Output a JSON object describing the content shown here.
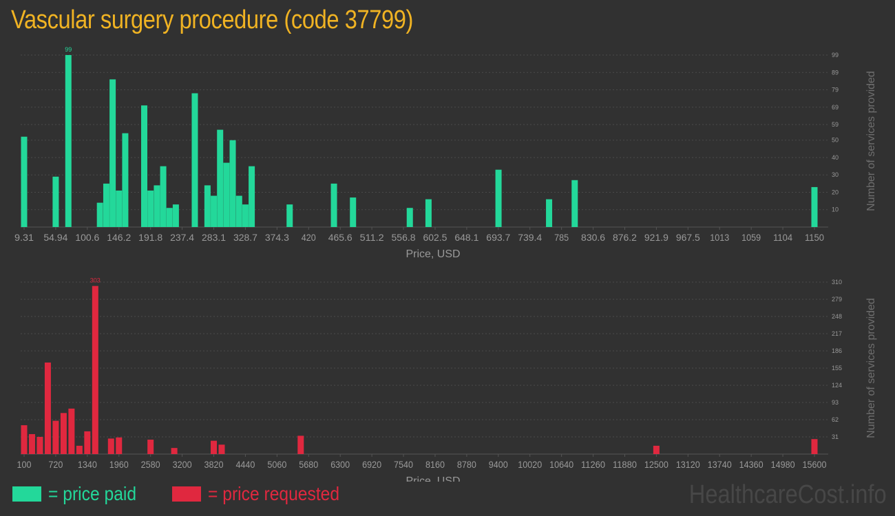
{
  "title": "Vascular surgery procedure (code 37799)",
  "legend": {
    "paid_label": "= price paid",
    "requested_label": "= price requested"
  },
  "watermark": "HealthcareCost.info",
  "colors": {
    "background": "#313131",
    "paid": "#23d89a",
    "requested": "#e0283f",
    "title": "#f0b323",
    "axis_text": "#999999",
    "grid": "#4a4a4a"
  },
  "chart_data": [
    {
      "type": "bar",
      "name": "price paid",
      "xlabel": "Price, USD",
      "ylabel": "Number of services provided",
      "x_ticks": [
        "9.31",
        "54.94",
        "100.6",
        "146.2",
        "191.8",
        "237.4",
        "283.1",
        "328.7",
        "374.3",
        "420",
        "465.6",
        "511.2",
        "556.8",
        "602.5",
        "648.1",
        "693.7",
        "739.4",
        "785",
        "830.6",
        "876.2",
        "921.9",
        "967.5",
        "1013",
        "1059",
        "1104",
        "1150"
      ],
      "y_ticks": [
        10,
        20,
        30,
        40,
        50,
        59,
        69,
        79,
        89,
        99
      ],
      "xlim": [
        9.31,
        1150
      ],
      "ylim": [
        0,
        99
      ],
      "grid": true,
      "max_label": "99",
      "bars": [
        {
          "x": 9.31,
          "y": 52
        },
        {
          "x": 54.94,
          "y": 29
        },
        {
          "x": 73.2,
          "y": 99
        },
        {
          "x": 118.8,
          "y": 14
        },
        {
          "x": 128,
          "y": 25
        },
        {
          "x": 137.1,
          "y": 85
        },
        {
          "x": 146.2,
          "y": 21
        },
        {
          "x": 155.3,
          "y": 54
        },
        {
          "x": 182.7,
          "y": 70
        },
        {
          "x": 191.8,
          "y": 21
        },
        {
          "x": 201,
          "y": 24
        },
        {
          "x": 210.1,
          "y": 35
        },
        {
          "x": 219.2,
          "y": 11
        },
        {
          "x": 228.3,
          "y": 13
        },
        {
          "x": 255.7,
          "y": 77
        },
        {
          "x": 274,
          "y": 24
        },
        {
          "x": 283.1,
          "y": 18
        },
        {
          "x": 292.2,
          "y": 56
        },
        {
          "x": 301.3,
          "y": 37
        },
        {
          "x": 310.4,
          "y": 50
        },
        {
          "x": 319.6,
          "y": 18
        },
        {
          "x": 328.7,
          "y": 13
        },
        {
          "x": 337.8,
          "y": 35
        },
        {
          "x": 392.6,
          "y": 13
        },
        {
          "x": 456.5,
          "y": 25
        },
        {
          "x": 484,
          "y": 17
        },
        {
          "x": 566,
          "y": 11
        },
        {
          "x": 593,
          "y": 16
        },
        {
          "x": 694,
          "y": 33
        },
        {
          "x": 767,
          "y": 16
        },
        {
          "x": 804,
          "y": 27
        },
        {
          "x": 1150,
          "y": 23
        }
      ]
    },
    {
      "type": "bar",
      "name": "price requested",
      "xlabel": "Price, USD",
      "ylabel": "Number of services provided",
      "x_ticks": [
        "100",
        "720",
        "1340",
        "1960",
        "2580",
        "3200",
        "3820",
        "4440",
        "5060",
        "5680",
        "6300",
        "6920",
        "7540",
        "8160",
        "8780",
        "9400",
        "10020",
        "10640",
        "11260",
        "11880",
        "12500",
        "13120",
        "13740",
        "14360",
        "14980",
        "15600"
      ],
      "y_ticks": [
        31,
        62,
        93,
        124,
        155,
        186,
        217,
        248,
        279,
        310
      ],
      "xlim": [
        100,
        15600
      ],
      "ylim": [
        0,
        310
      ],
      "grid": true,
      "max_label": "303",
      "bars": [
        {
          "x": 100,
          "y": 52
        },
        {
          "x": 255,
          "y": 36
        },
        {
          "x": 410,
          "y": 31
        },
        {
          "x": 565,
          "y": 165
        },
        {
          "x": 720,
          "y": 60
        },
        {
          "x": 875,
          "y": 74
        },
        {
          "x": 1030,
          "y": 82
        },
        {
          "x": 1185,
          "y": 15
        },
        {
          "x": 1340,
          "y": 41
        },
        {
          "x": 1495,
          "y": 303
        },
        {
          "x": 1805,
          "y": 28
        },
        {
          "x": 1960,
          "y": 30
        },
        {
          "x": 2580,
          "y": 26
        },
        {
          "x": 3045,
          "y": 11
        },
        {
          "x": 3820,
          "y": 24
        },
        {
          "x": 3975,
          "y": 17
        },
        {
          "x": 5525,
          "y": 33
        },
        {
          "x": 12500,
          "y": 15
        },
        {
          "x": 15600,
          "y": 27
        }
      ]
    }
  ]
}
